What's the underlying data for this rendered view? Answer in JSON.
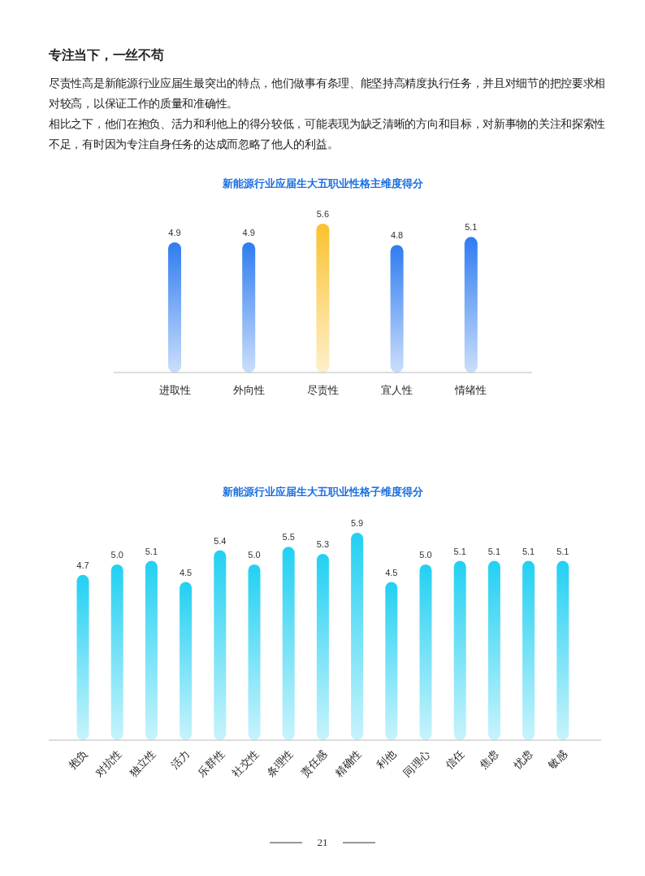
{
  "chart_data": [
    {
      "type": "bar",
      "title": "新能源行业应届生大五职业性格主维度得分",
      "categories": [
        "进取性",
        "外向性",
        "尽责性",
        "宜人性",
        "情绪性"
      ],
      "values": [
        4.9,
        4.9,
        5.6,
        4.8,
        5.1
      ],
      "colors": [
        "#2f7cf0",
        "#2f7cf0",
        "#f9c22e",
        "#2f7cf0",
        "#2f7cf0"
      ],
      "data_labels": true,
      "annotations": [
        "专注当下，一丝不苟",
        "尽责性高是新能源行业应届生最突出的特点，他们做事有条理、能坚持高精度执行任务，并且对细节的把控要求相对较高，以保证工作的质量和准确性。",
        "相比之下，他们在抱负、活力和利他上的得分较低，可能表现为缺乏清晰的方向和目标，对新事物的关注和探索性不足，有时因为专注自身任务的达成而忽略了他人的利益。"
      ]
    },
    {
      "type": "bar",
      "title": "新能源行业应届生大五职业性格子维度得分",
      "categories": [
        "抱负",
        "对抗性",
        "独立性",
        "活力",
        "乐群性",
        "社交性",
        "条理性",
        "责任感",
        "精确性",
        "利他",
        "同理心",
        "信任",
        "焦虑",
        "忧虑",
        "敏感"
      ],
      "values": [
        4.7,
        5.0,
        5.1,
        4.5,
        5.4,
        5.0,
        5.5,
        5.3,
        5.9,
        4.5,
        5.0,
        5.1,
        5.1,
        5.1,
        5.1
      ],
      "colors": [
        "#22d0f2",
        "#22d0f2",
        "#22d0f2",
        "#22d0f2",
        "#22d0f2",
        "#22d0f2",
        "#22d0f2",
        "#22d0f2",
        "#22d0f2",
        "#22d0f2",
        "#22d0f2",
        "#22d0f2",
        "#22d0f2",
        "#22d0f2",
        "#22d0f2"
      ],
      "value_labels": [
        "4.7",
        "5.0",
        "5.1",
        "4.5",
        "5.4",
        "5.0",
        "5.5",
        "5.3",
        "5.9",
        "4.5",
        "5.0",
        "5.1",
        "5.1",
        "5.1",
        "5.1"
      ],
      "annotations": [
        "21"
      ]
    }
  ]
}
